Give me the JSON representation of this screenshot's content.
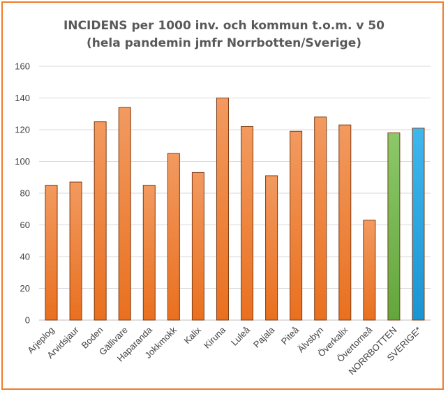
{
  "chart_data": {
    "type": "bar",
    "title_line1": "INCIDENS per 1000 inv. och kommun t.o.m. v 50",
    "title_line2": "(hela pandemin jmfr Norrbotten/Sverige)",
    "categories": [
      "Arjeplog",
      "Arvidsjaur",
      "Boden",
      "Gällivare",
      "Haparanda",
      "Jokkmokk",
      "Kalix",
      "Kiruna",
      "Luleå",
      "Pajala",
      "Piteå",
      "Älvsbyn",
      "Överkalix",
      "Övertorneå",
      "NORRBOTTEN",
      "SVERIGE*"
    ],
    "values": [
      85,
      87,
      125,
      134,
      85,
      105,
      93,
      140,
      122,
      91,
      119,
      128,
      123,
      63,
      118,
      121
    ],
    "bar_colors": [
      "#ee7d31",
      "#ee7d31",
      "#ee7d31",
      "#ee7d31",
      "#ee7d31",
      "#ee7d31",
      "#ee7d31",
      "#ee7d31",
      "#ee7d31",
      "#ee7d31",
      "#ee7d31",
      "#ee7d31",
      "#ee7d31",
      "#ee7d31",
      "#70ad47",
      "#1fa3e0"
    ],
    "ylim": [
      0,
      160
    ],
    "yticks": [
      0,
      20,
      40,
      60,
      80,
      100,
      120,
      140,
      160
    ],
    "grid": true,
    "legend": "none"
  },
  "colors": {
    "frame": "#f07c2b",
    "municipality_bar": "#ee7d31",
    "norrbotten_bar": "#70ad47",
    "sverige_bar": "#1fa3e0"
  }
}
